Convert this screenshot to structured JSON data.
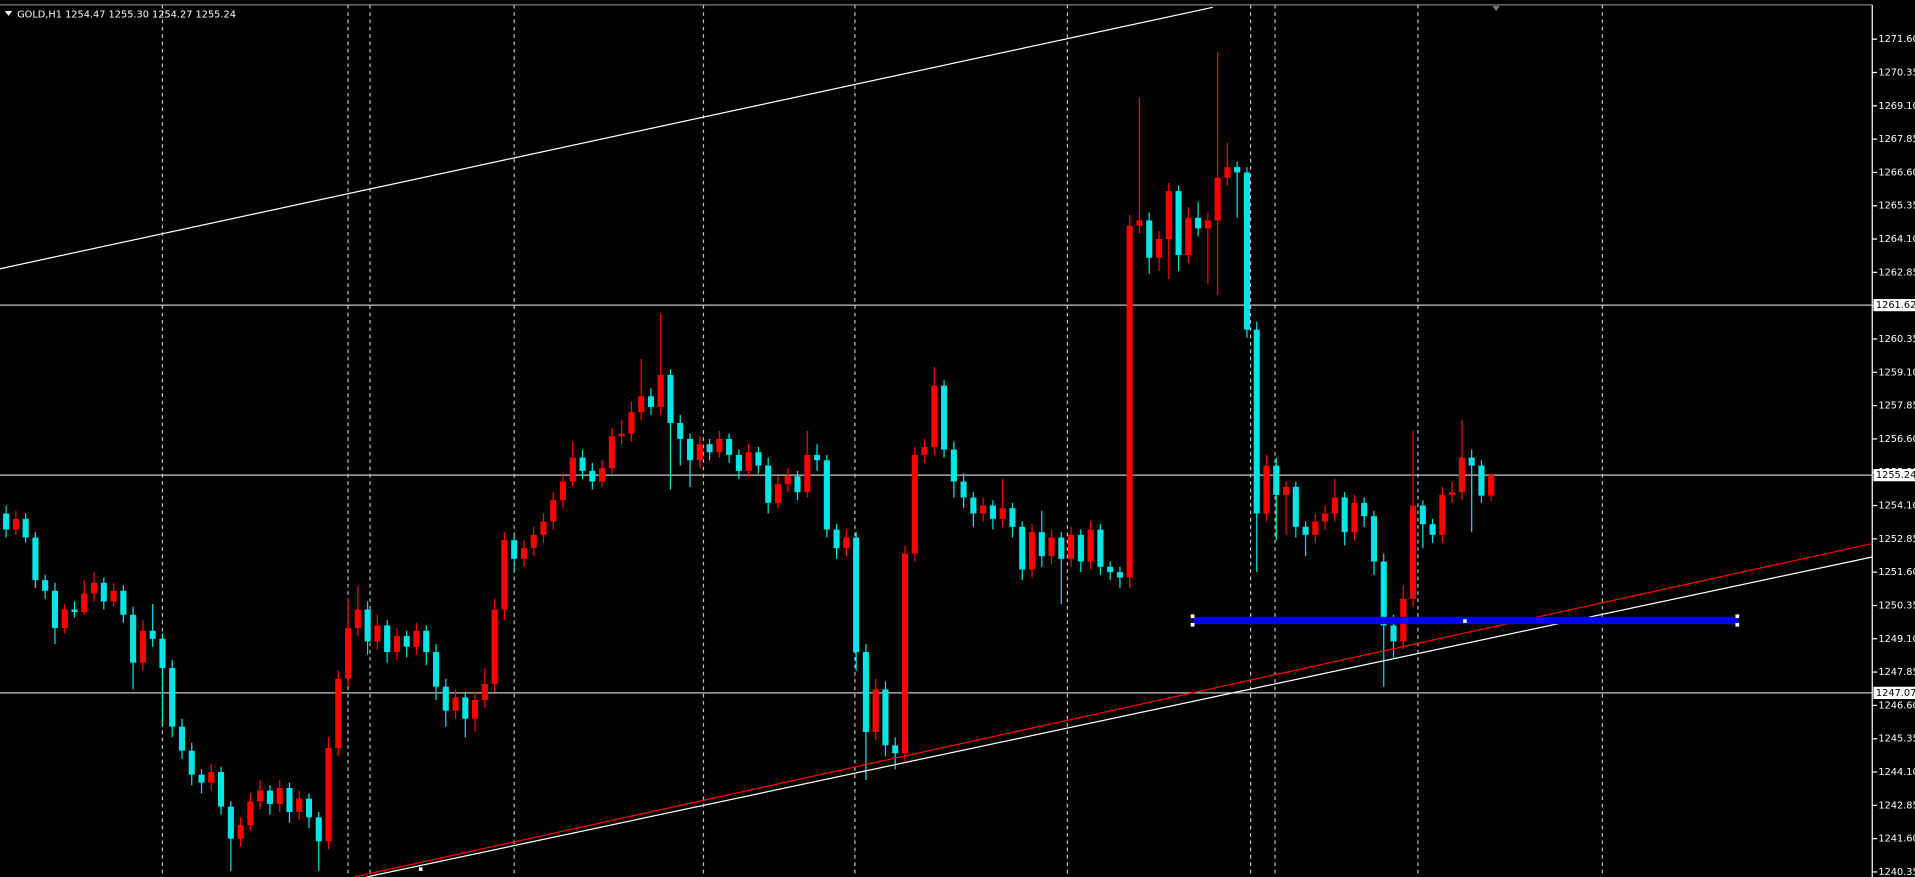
{
  "chart_data": {
    "type": "candlestick",
    "title": "GOLD,H1 1254.47 1255.30 1254.27 1255.24",
    "up_color": "#ff0000",
    "down_color": "#00e5e5",
    "level_color": "#c8c8c8",
    "ylim": [
      1240.16,
      1273.07
    ],
    "yticks": [
      {
        "value": 1271.6,
        "label": "1271.60"
      },
      {
        "value": 1270.35,
        "label": "1270.35"
      },
      {
        "value": 1269.1,
        "label": "1269.10"
      },
      {
        "value": 1267.85,
        "label": "1267.85"
      },
      {
        "value": 1266.6,
        "label": "1266.60"
      },
      {
        "value": 1265.35,
        "label": "1265.35"
      },
      {
        "value": 1264.1,
        "label": "1264.10"
      },
      {
        "value": 1262.85,
        "label": "1262.85"
      },
      {
        "value": 1261.6,
        "label": "1261.60"
      },
      {
        "value": 1260.35,
        "label": "1260.35"
      },
      {
        "value": 1259.1,
        "label": "1259.10"
      },
      {
        "value": 1257.85,
        "label": "1257.85"
      },
      {
        "value": 1256.6,
        "label": "1256.60"
      },
      {
        "value": 1255.35,
        "label": "1255.35"
      },
      {
        "value": 1254.1,
        "label": "1254.10"
      },
      {
        "value": 1252.85,
        "label": "1252.85"
      },
      {
        "value": 1251.6,
        "label": "1251.60"
      },
      {
        "value": 1250.35,
        "label": "1250.35"
      },
      {
        "value": 1249.1,
        "label": "1249.10"
      },
      {
        "value": 1247.85,
        "label": "1247.85"
      },
      {
        "value": 1246.6,
        "label": "1246.60"
      },
      {
        "value": 1245.35,
        "label": "1245.35"
      },
      {
        "value": 1244.1,
        "label": "1244.10"
      },
      {
        "value": 1242.85,
        "label": "1242.85"
      },
      {
        "value": 1241.6,
        "label": "1241.60"
      },
      {
        "value": 1240.35,
        "label": "1240.35"
      }
    ],
    "levels": [
      1261.62,
      1255.24,
      1247.07
    ],
    "candles": [
      [
        1253.8,
        1254.1,
        1252.9,
        1253.2
      ],
      [
        1253.2,
        1253.9,
        1253.0,
        1253.6
      ],
      [
        1253.6,
        1253.8,
        1252.7,
        1252.9
      ],
      [
        1252.9,
        1253.1,
        1251.0,
        1251.3
      ],
      [
        1251.3,
        1251.5,
        1250.6,
        1250.9
      ],
      [
        1250.9,
        1251.2,
        1248.9,
        1249.5
      ],
      [
        1249.5,
        1250.4,
        1249.3,
        1250.2
      ],
      [
        1250.2,
        1250.5,
        1249.9,
        1250.1
      ],
      [
        1250.1,
        1251.3,
        1250.0,
        1250.8
      ],
      [
        1250.8,
        1251.6,
        1250.5,
        1251.2
      ],
      [
        1251.2,
        1251.4,
        1250.2,
        1250.5
      ],
      [
        1250.5,
        1251.2,
        1250.3,
        1250.9
      ],
      [
        1250.9,
        1251.1,
        1249.7,
        1250.0
      ],
      [
        1250.0,
        1250.3,
        1247.2,
        1248.2
      ],
      [
        1248.2,
        1249.8,
        1247.9,
        1249.4
      ],
      [
        1249.4,
        1250.4,
        1248.8,
        1249.1
      ],
      [
        1249.1,
        1249.3,
        1245.9,
        1248.0
      ],
      [
        1248.0,
        1248.3,
        1245.4,
        1245.8
      ],
      [
        1245.8,
        1246.1,
        1244.6,
        1244.9
      ],
      [
        1244.9,
        1245.2,
        1243.6,
        1244.0
      ],
      [
        1244.0,
        1244.2,
        1243.3,
        1243.7
      ],
      [
        1243.7,
        1244.4,
        1243.4,
        1244.1
      ],
      [
        1244.1,
        1244.3,
        1242.5,
        1242.8
      ],
      [
        1242.8,
        1243.0,
        1240.4,
        1241.6
      ],
      [
        1241.6,
        1242.4,
        1241.3,
        1242.1
      ],
      [
        1242.1,
        1243.3,
        1241.9,
        1243.0
      ],
      [
        1243.0,
        1243.8,
        1242.7,
        1243.4
      ],
      [
        1243.4,
        1243.6,
        1242.5,
        1242.9
      ],
      [
        1242.9,
        1243.8,
        1242.6,
        1243.5
      ],
      [
        1243.5,
        1243.7,
        1242.2,
        1242.6
      ],
      [
        1242.6,
        1243.4,
        1242.3,
        1243.1
      ],
      [
        1243.1,
        1243.3,
        1242.0,
        1242.4
      ],
      [
        1242.4,
        1242.6,
        1240.4,
        1241.5
      ],
      [
        1241.5,
        1245.4,
        1241.2,
        1245.0
      ],
      [
        1245.0,
        1247.9,
        1244.7,
        1247.6
      ],
      [
        1247.6,
        1250.6,
        1247.3,
        1249.5
      ],
      [
        1249.5,
        1251.1,
        1249.2,
        1250.2
      ],
      [
        1250.2,
        1250.5,
        1248.5,
        1249.0
      ],
      [
        1249.0,
        1250.0,
        1248.7,
        1249.6
      ],
      [
        1249.6,
        1249.8,
        1248.2,
        1248.6
      ],
      [
        1248.6,
        1249.5,
        1248.3,
        1249.2
      ],
      [
        1249.2,
        1249.4,
        1248.4,
        1248.8
      ],
      [
        1248.8,
        1249.7,
        1248.5,
        1249.4
      ],
      [
        1249.4,
        1249.6,
        1248.1,
        1248.6
      ],
      [
        1248.6,
        1248.9,
        1246.8,
        1247.3
      ],
      [
        1247.3,
        1247.6,
        1245.8,
        1246.4
      ],
      [
        1246.4,
        1247.2,
        1246.1,
        1246.9
      ],
      [
        1246.9,
        1247.1,
        1245.4,
        1246.1
      ],
      [
        1246.1,
        1247.1,
        1245.6,
        1246.8
      ],
      [
        1246.8,
        1248.0,
        1246.5,
        1247.4
      ],
      [
        1247.4,
        1250.6,
        1247.1,
        1250.2
      ],
      [
        1250.2,
        1253.1,
        1249.8,
        1252.8
      ],
      [
        1252.8,
        1253.0,
        1251.6,
        1252.1
      ],
      [
        1252.1,
        1252.8,
        1251.8,
        1252.5
      ],
      [
        1252.5,
        1253.3,
        1252.2,
        1253.0
      ],
      [
        1253.0,
        1253.8,
        1252.7,
        1253.5
      ],
      [
        1253.5,
        1254.6,
        1253.2,
        1254.3
      ],
      [
        1254.3,
        1255.3,
        1254.0,
        1255.0
      ],
      [
        1255.0,
        1256.5,
        1254.8,
        1255.9
      ],
      [
        1255.9,
        1256.2,
        1255.1,
        1255.4
      ],
      [
        1255.4,
        1255.7,
        1254.7,
        1255.0
      ],
      [
        1255.0,
        1255.8,
        1254.8,
        1255.5
      ],
      [
        1255.5,
        1257.0,
        1255.3,
        1256.7
      ],
      [
        1256.7,
        1257.3,
        1256.4,
        1256.8
      ],
      [
        1256.8,
        1258.0,
        1256.5,
        1257.6
      ],
      [
        1257.6,
        1259.6,
        1257.3,
        1258.2
      ],
      [
        1258.2,
        1258.5,
        1257.5,
        1257.8
      ],
      [
        1257.8,
        1261.3,
        1257.5,
        1259.0
      ],
      [
        1259.0,
        1259.2,
        1254.7,
        1257.2
      ],
      [
        1257.2,
        1257.5,
        1255.6,
        1256.6
      ],
      [
        1256.6,
        1256.8,
        1254.8,
        1255.8
      ],
      [
        1255.8,
        1256.7,
        1255.5,
        1256.4
      ],
      [
        1256.4,
        1256.6,
        1255.8,
        1256.1
      ],
      [
        1256.1,
        1256.9,
        1255.9,
        1256.6
      ],
      [
        1256.6,
        1256.8,
        1255.7,
        1256.0
      ],
      [
        1256.0,
        1256.2,
        1255.1,
        1255.4
      ],
      [
        1255.4,
        1256.4,
        1255.2,
        1256.1
      ],
      [
        1256.1,
        1256.3,
        1255.3,
        1255.6
      ],
      [
        1255.6,
        1255.9,
        1253.8,
        1254.2
      ],
      [
        1254.2,
        1255.2,
        1254.0,
        1254.9
      ],
      [
        1254.9,
        1255.5,
        1254.6,
        1255.2
      ],
      [
        1255.2,
        1255.4,
        1254.3,
        1254.6
      ],
      [
        1254.6,
        1256.9,
        1254.4,
        1256.0
      ],
      [
        1256.0,
        1256.4,
        1255.4,
        1255.8
      ],
      [
        1255.8,
        1256.0,
        1252.9,
        1253.2
      ],
      [
        1253.2,
        1253.4,
        1252.1,
        1252.5
      ],
      [
        1252.5,
        1253.2,
        1252.2,
        1252.9
      ],
      [
        1252.9,
        1253.1,
        1247.9,
        1248.6
      ],
      [
        1248.6,
        1248.9,
        1243.8,
        1245.6
      ],
      [
        1245.6,
        1247.6,
        1245.3,
        1247.2
      ],
      [
        1247.2,
        1247.5,
        1244.7,
        1245.1
      ],
      [
        1245.1,
        1245.4,
        1244.2,
        1244.8
      ],
      [
        1244.8,
        1252.6,
        1244.5,
        1252.3
      ],
      [
        1252.3,
        1256.3,
        1252.0,
        1256.0
      ],
      [
        1256.0,
        1256.6,
        1255.7,
        1256.3
      ],
      [
        1256.3,
        1259.3,
        1256.0,
        1258.6
      ],
      [
        1258.6,
        1258.8,
        1255.9,
        1256.2
      ],
      [
        1256.2,
        1256.5,
        1254.4,
        1255.0
      ],
      [
        1255.0,
        1255.3,
        1254.0,
        1254.4
      ],
      [
        1254.4,
        1254.6,
        1253.3,
        1253.8
      ],
      [
        1253.8,
        1254.4,
        1253.5,
        1254.1
      ],
      [
        1254.1,
        1254.3,
        1253.2,
        1253.6
      ],
      [
        1253.6,
        1255.1,
        1253.3,
        1254.0
      ],
      [
        1254.0,
        1254.2,
        1252.9,
        1253.3
      ],
      [
        1253.3,
        1253.5,
        1251.3,
        1251.7
      ],
      [
        1251.7,
        1253.4,
        1251.4,
        1253.1
      ],
      [
        1253.1,
        1253.9,
        1251.8,
        1252.2
      ],
      [
        1252.2,
        1253.2,
        1251.9,
        1252.9
      ],
      [
        1252.9,
        1253.1,
        1250.4,
        1252.1
      ],
      [
        1252.1,
        1253.3,
        1251.8,
        1253.0
      ],
      [
        1253.0,
        1253.2,
        1251.6,
        1252.0
      ],
      [
        1252.0,
        1253.5,
        1251.7,
        1253.2
      ],
      [
        1253.2,
        1253.4,
        1251.5,
        1251.8
      ],
      [
        1251.8,
        1252.0,
        1251.3,
        1251.6
      ],
      [
        1251.6,
        1251.8,
        1251.0,
        1251.4
      ],
      [
        1251.4,
        1265.0,
        1251.0,
        1264.6
      ],
      [
        1264.6,
        1269.4,
        1264.3,
        1264.8
      ],
      [
        1264.8,
        1265.1,
        1262.8,
        1263.4
      ],
      [
        1263.4,
        1264.4,
        1262.9,
        1264.1
      ],
      [
        1264.1,
        1266.2,
        1262.6,
        1265.9
      ],
      [
        1265.9,
        1266.1,
        1262.9,
        1263.5
      ],
      [
        1263.5,
        1265.3,
        1263.2,
        1264.9
      ],
      [
        1264.9,
        1265.5,
        1264.2,
        1264.5
      ],
      [
        1264.5,
        1265.1,
        1262.4,
        1264.8
      ],
      [
        1264.8,
        1271.1,
        1262.0,
        1266.4
      ],
      [
        1266.4,
        1267.7,
        1266.1,
        1266.8
      ],
      [
        1266.8,
        1267.0,
        1264.9,
        1266.6
      ],
      [
        1266.6,
        1266.8,
        1260.4,
        1260.7
      ],
      [
        1260.7,
        1261.0,
        1251.6,
        1253.8
      ],
      [
        1253.8,
        1256.0,
        1253.5,
        1255.6
      ],
      [
        1255.6,
        1255.9,
        1252.8,
        1254.5
      ],
      [
        1254.5,
        1255.0,
        1253.0,
        1254.8
      ],
      [
        1254.8,
        1255.0,
        1252.9,
        1253.3
      ],
      [
        1253.3,
        1253.5,
        1252.2,
        1253.0
      ],
      [
        1253.0,
        1253.8,
        1252.7,
        1253.5
      ],
      [
        1253.5,
        1254.1,
        1253.2,
        1253.8
      ],
      [
        1253.8,
        1255.1,
        1253.5,
        1254.4
      ],
      [
        1254.4,
        1254.6,
        1252.6,
        1253.1
      ],
      [
        1253.1,
        1254.5,
        1252.8,
        1254.2
      ],
      [
        1254.2,
        1254.4,
        1253.3,
        1253.7
      ],
      [
        1253.7,
        1253.9,
        1251.5,
        1252.0
      ],
      [
        1252.0,
        1252.3,
        1247.3,
        1249.6
      ],
      [
        1249.6,
        1250.0,
        1248.4,
        1249.0
      ],
      [
        1249.0,
        1251.1,
        1248.7,
        1250.6
      ],
      [
        1250.6,
        1256.9,
        1250.3,
        1254.1
      ],
      [
        1254.1,
        1254.3,
        1252.5,
        1253.4
      ],
      [
        1253.4,
        1253.6,
        1252.7,
        1253.0
      ],
      [
        1253.0,
        1254.8,
        1252.7,
        1254.5
      ],
      [
        1254.5,
        1255.0,
        1254.2,
        1254.6
      ],
      [
        1254.6,
        1257.3,
        1254.3,
        1255.9
      ],
      [
        1255.9,
        1256.2,
        1253.1,
        1255.6
      ],
      [
        1255.6,
        1255.8,
        1254.2,
        1254.47
      ],
      [
        1254.47,
        1255.3,
        1254.27,
        1255.24
      ]
    ]
  }
}
